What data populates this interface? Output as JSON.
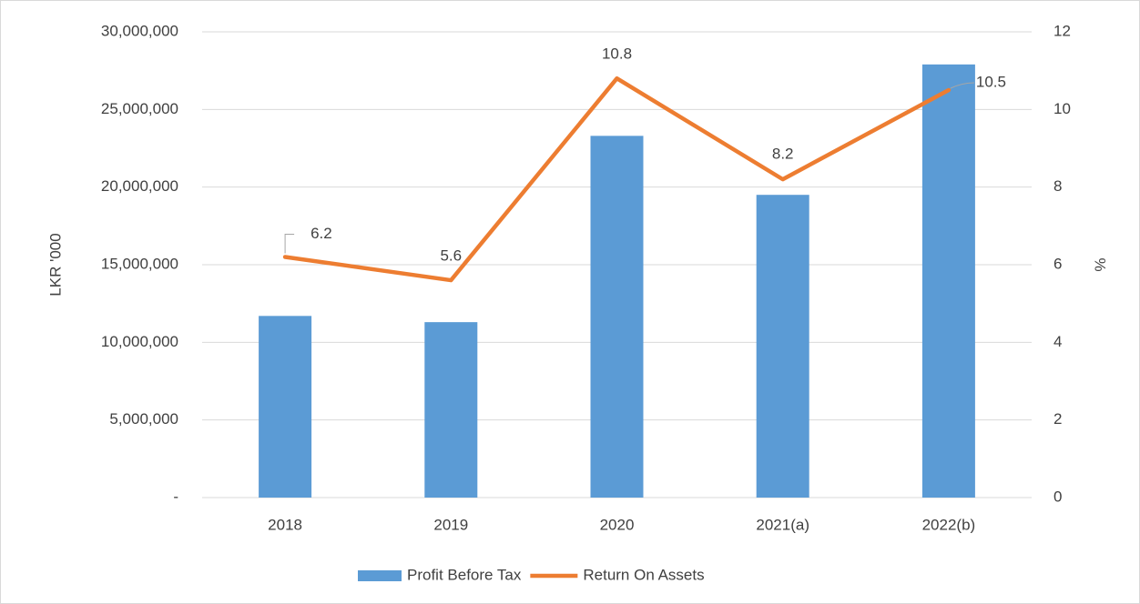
{
  "chart_data": {
    "type": "bar",
    "categories": [
      "2018",
      "2019",
      "2020",
      "2021(a)",
      "2022(b)"
    ],
    "series": [
      {
        "name": "Profit Before Tax",
        "type": "bar",
        "color": "#5b9bd5",
        "values": [
          11700000,
          11300000,
          23300000,
          19500000,
          27900000
        ]
      },
      {
        "name": "Return On Assets",
        "type": "line",
        "axis": "y2",
        "color": "#ed7d31",
        "values": [
          6.2,
          5.6,
          10.8,
          8.2,
          10.5
        ]
      }
    ],
    "ylabel": "LKR '000",
    "y2label": "%",
    "ylim": [
      0,
      30000000
    ],
    "yticks": [
      {
        "value": 0,
        "label": "-"
      },
      {
        "value": 5000000,
        "label": "5,000,000"
      },
      {
        "value": 10000000,
        "label": "10,000,000"
      },
      {
        "value": 15000000,
        "label": "15,000,000"
      },
      {
        "value": 20000000,
        "label": "20,000,000"
      },
      {
        "value": 25000000,
        "label": "25,000,000"
      },
      {
        "value": 30000000,
        "label": "30,000,000"
      }
    ],
    "y2lim": [
      0,
      12
    ],
    "y2ticks": [
      0,
      2,
      4,
      6,
      8,
      10,
      12
    ],
    "grid": true,
    "legend": "bottom"
  }
}
